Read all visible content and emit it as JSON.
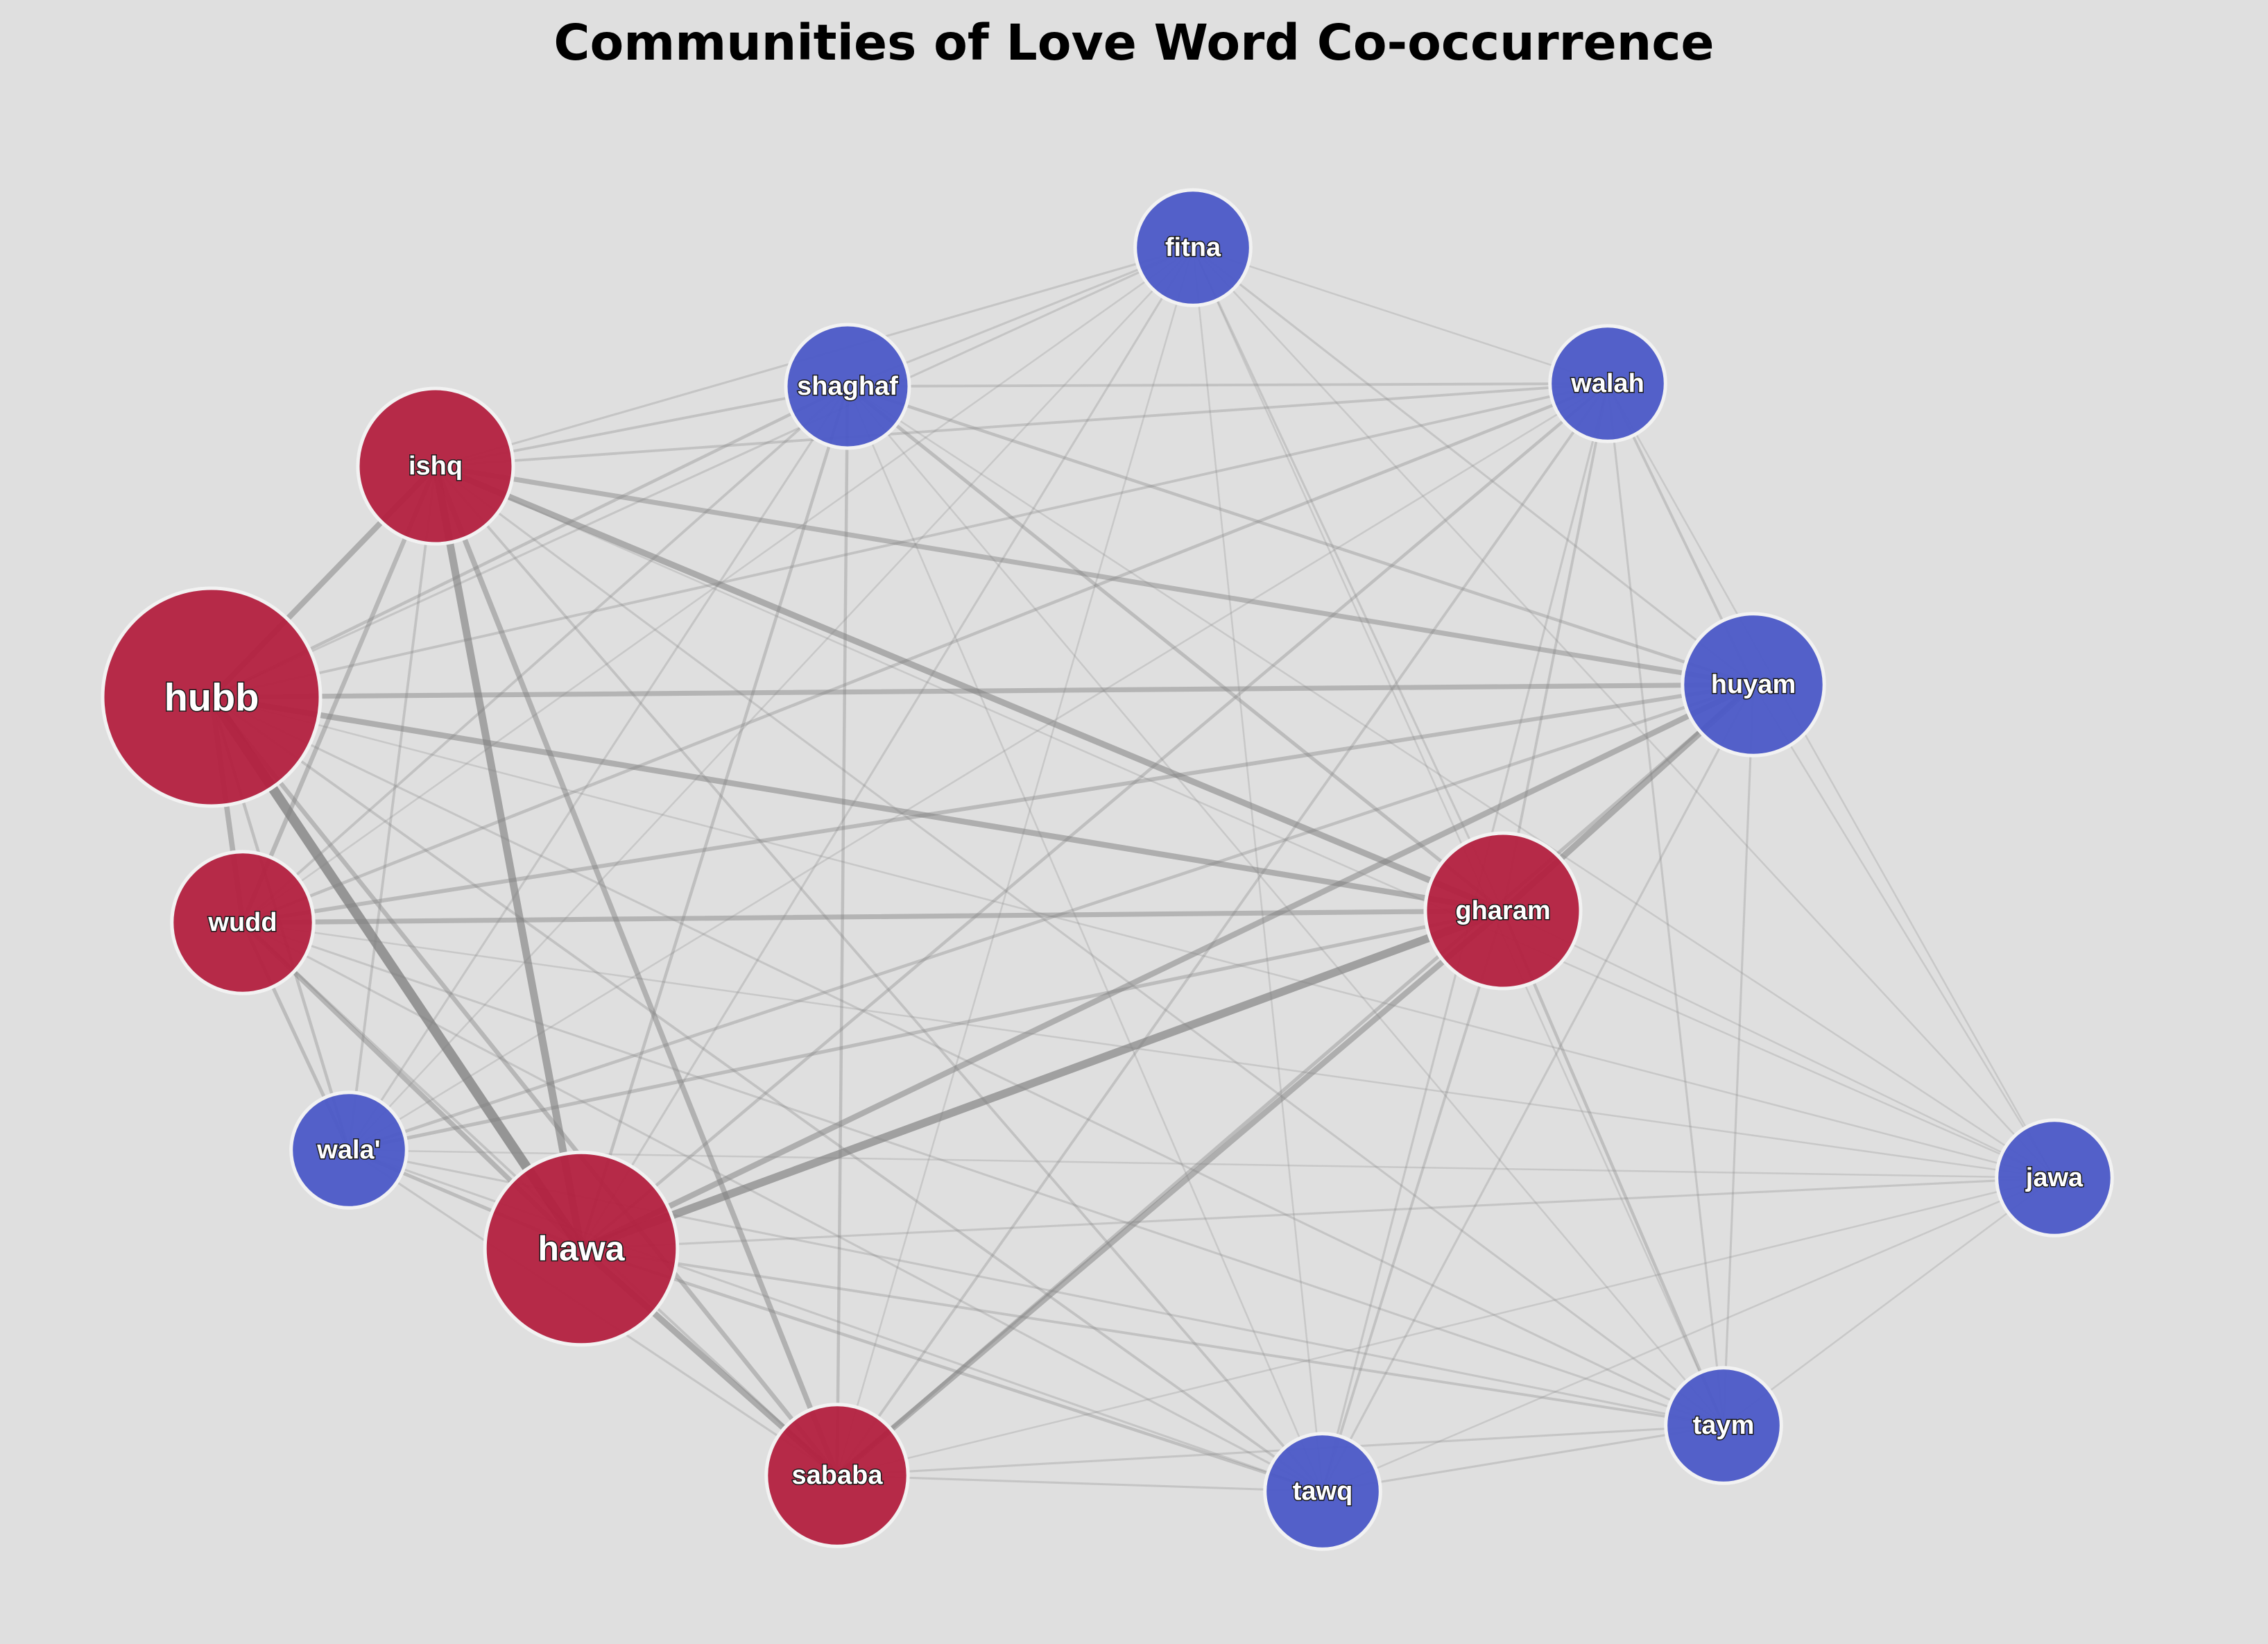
{
  "title": "Communities of Love Word Co-occurrence",
  "colors": {
    "background": "#dfdfdf",
    "community_a": "#b41f3f",
    "community_b": "#4a58c8",
    "edge": "#808080",
    "node_outline": "#f2f2f2"
  },
  "communities": [
    {
      "id": "a",
      "color": "#b41f3f",
      "members": [
        "hubb",
        "hawa",
        "ishq",
        "gharam",
        "wudd",
        "sababa"
      ]
    },
    {
      "id": "b",
      "color": "#4a58c8",
      "members": [
        "huyam",
        "shaghaf",
        "fitna",
        "walah",
        "wala'",
        "tawq",
        "taym",
        "jawa"
      ]
    }
  ],
  "nodes": [
    {
      "id": "hubb",
      "community": "a",
      "weight": 1.0
    },
    {
      "id": "hawa",
      "community": "a",
      "weight": 0.82
    },
    {
      "id": "ishq",
      "community": "a",
      "weight": 0.58
    },
    {
      "id": "gharam",
      "community": "a",
      "weight": 0.58
    },
    {
      "id": "wudd",
      "community": "a",
      "weight": 0.5
    },
    {
      "id": "sababa",
      "community": "a",
      "weight": 0.5
    },
    {
      "id": "huyam",
      "community": "b",
      "weight": 0.5
    },
    {
      "id": "shaghaf",
      "community": "b",
      "weight": 0.4
    },
    {
      "id": "fitna",
      "community": "b",
      "weight": 0.36
    },
    {
      "id": "walah",
      "community": "b",
      "weight": 0.36
    },
    {
      "id": "wala'",
      "community": "b",
      "weight": 0.36
    },
    {
      "id": "tawq",
      "community": "b",
      "weight": 0.36
    },
    {
      "id": "taym",
      "community": "b",
      "weight": 0.36
    },
    {
      "id": "jawa",
      "community": "b",
      "weight": 0.36
    }
  ],
  "edges": [
    [
      "hubb",
      "hawa",
      1.0
    ],
    [
      "hubb",
      "ishq",
      0.55
    ],
    [
      "hubb",
      "wudd",
      0.5
    ],
    [
      "hubb",
      "gharam",
      0.55
    ],
    [
      "hubb",
      "huyam",
      0.45
    ],
    [
      "hubb",
      "sababa",
      0.4
    ],
    [
      "hubb",
      "shaghaf",
      0.25
    ],
    [
      "hubb",
      "walah",
      0.2
    ],
    [
      "hubb",
      "wala'",
      0.25
    ],
    [
      "hubb",
      "tawq",
      0.2
    ],
    [
      "hubb",
      "taym",
      0.15
    ],
    [
      "hubb",
      "fitna",
      0.15
    ],
    [
      "hubb",
      "jawa",
      0.1
    ],
    [
      "hawa",
      "ishq",
      0.75
    ],
    [
      "hawa",
      "gharam",
      0.8
    ],
    [
      "hawa",
      "sababa",
      0.6
    ],
    [
      "hawa",
      "huyam",
      0.55
    ],
    [
      "hawa",
      "wudd",
      0.45
    ],
    [
      "hawa",
      "wala'",
      0.3
    ],
    [
      "hawa",
      "tawq",
      0.25
    ],
    [
      "hawa",
      "taym",
      0.2
    ],
    [
      "hawa",
      "walah",
      0.25
    ],
    [
      "hawa",
      "shaghaf",
      0.25
    ],
    [
      "hawa",
      "fitna",
      0.15
    ],
    [
      "hawa",
      "jawa",
      0.15
    ],
    [
      "ishq",
      "gharam",
      0.6
    ],
    [
      "ishq",
      "sababa",
      0.5
    ],
    [
      "ishq",
      "huyam",
      0.45
    ],
    [
      "ishq",
      "wudd",
      0.4
    ],
    [
      "ishq",
      "shaghaf",
      0.2
    ],
    [
      "ishq",
      "walah",
      0.2
    ],
    [
      "ishq",
      "fitna",
      0.15
    ],
    [
      "ishq",
      "wala'",
      0.2
    ],
    [
      "ishq",
      "tawq",
      0.2
    ],
    [
      "ishq",
      "taym",
      0.15
    ],
    [
      "ishq",
      "jawa",
      0.1
    ],
    [
      "gharam",
      "sababa",
      0.55
    ],
    [
      "gharam",
      "huyam",
      0.6
    ],
    [
      "gharam",
      "wudd",
      0.45
    ],
    [
      "gharam",
      "wala'",
      0.3
    ],
    [
      "gharam",
      "shaghaf",
      0.3
    ],
    [
      "gharam",
      "walah",
      0.2
    ],
    [
      "gharam",
      "fitna",
      0.15
    ],
    [
      "gharam",
      "tawq",
      0.2
    ],
    [
      "gharam",
      "taym",
      0.25
    ],
    [
      "gharam",
      "jawa",
      0.1
    ],
    [
      "wudd",
      "huyam",
      0.35
    ],
    [
      "wudd",
      "shaghaf",
      0.2
    ],
    [
      "wudd",
      "walah",
      0.25
    ],
    [
      "wudd",
      "sababa",
      0.2
    ],
    [
      "wudd",
      "wala'",
      0.3
    ],
    [
      "wudd",
      "tawq",
      0.15
    ],
    [
      "wudd",
      "taym",
      0.15
    ],
    [
      "wudd",
      "fitna",
      0.1
    ],
    [
      "wudd",
      "jawa",
      0.1
    ],
    [
      "sababa",
      "huyam",
      0.3
    ],
    [
      "sababa",
      "shaghaf",
      0.25
    ],
    [
      "sababa",
      "walah",
      0.2
    ],
    [
      "sababa",
      "tawq",
      0.15
    ],
    [
      "sababa",
      "taym",
      0.15
    ],
    [
      "sababa",
      "wala'",
      0.15
    ],
    [
      "sababa",
      "fitna",
      0.1
    ],
    [
      "sababa",
      "jawa",
      0.1
    ],
    [
      "huyam",
      "shaghaf",
      0.25
    ],
    [
      "huyam",
      "walah",
      0.2
    ],
    [
      "huyam",
      "fitna",
      0.15
    ],
    [
      "huyam",
      "wala'",
      0.25
    ],
    [
      "huyam",
      "tawq",
      0.15
    ],
    [
      "huyam",
      "taym",
      0.15
    ],
    [
      "huyam",
      "jawa",
      0.1
    ],
    [
      "shaghaf",
      "walah",
      0.2
    ],
    [
      "shaghaf",
      "fitna",
      0.15
    ],
    [
      "shaghaf",
      "wala'",
      0.15
    ],
    [
      "shaghaf",
      "tawq",
      0.1
    ],
    [
      "shaghaf",
      "taym",
      0.1
    ],
    [
      "shaghaf",
      "jawa",
      0.1
    ],
    [
      "fitna",
      "walah",
      0.1
    ],
    [
      "fitna",
      "wala'",
      0.1
    ],
    [
      "fitna",
      "tawq",
      0.1
    ],
    [
      "fitna",
      "taym",
      0.1
    ],
    [
      "fitna",
      "jawa",
      0.1
    ],
    [
      "walah",
      "wala'",
      0.1
    ],
    [
      "walah",
      "tawq",
      0.15
    ],
    [
      "walah",
      "taym",
      0.15
    ],
    [
      "walah",
      "jawa",
      0.1
    ],
    [
      "wala'",
      "tawq",
      0.15
    ],
    [
      "wala'",
      "taym",
      0.15
    ],
    [
      "wala'",
      "jawa",
      0.1
    ],
    [
      "tawq",
      "taym",
      0.15
    ],
    [
      "tawq",
      "jawa",
      0.1
    ],
    [
      "taym",
      "jawa",
      0.1
    ]
  ]
}
